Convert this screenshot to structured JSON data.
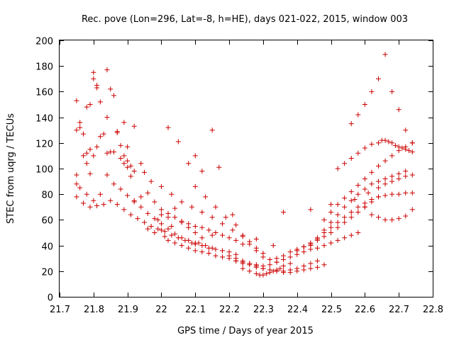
{
  "chart_data": {
    "type": "scatter",
    "title": "Rec. pove (Lon=296, Lat=-8, h=HE), days 021-022, 2015, window 003",
    "xlabel": "GPS time / Days of year 2015",
    "ylabel": "STEC from uqrg / TECUs",
    "xlim": [
      21.7,
      22.8
    ],
    "ylim": [
      0,
      200
    ],
    "xticks": [
      21.7,
      21.8,
      21.9,
      22.0,
      22.1,
      22.2,
      22.3,
      22.4,
      22.5,
      22.6,
      22.7,
      22.8
    ],
    "xtick_labels": [
      "21.7",
      "21.8",
      "21.9",
      "22",
      "22.1",
      "22.2",
      "22.3",
      "22.4",
      "22.5",
      "22.6",
      "22.7",
      "22.8"
    ],
    "yticks": [
      0,
      20,
      40,
      60,
      80,
      100,
      120,
      140,
      160,
      180,
      200
    ],
    "ytick_labels": [
      "0",
      "20",
      "40",
      "60",
      "80",
      "100",
      "120",
      "140",
      "160",
      "180",
      "200"
    ],
    "marker": "+",
    "color": "#cc0000",
    "series": [
      {
        "name": "STEC",
        "x": [
          21.75,
          21.76,
          21.77,
          21.78,
          21.79,
          21.8,
          21.81,
          21.82,
          21.84,
          21.85,
          21.86,
          21.87,
          21.88,
          21.89,
          21.9,
          21.91,
          21.75,
          21.76,
          21.78,
          21.79,
          21.8,
          21.81,
          21.83,
          21.84,
          21.86,
          21.88,
          21.89,
          21.9,
          21.91,
          21.92,
          21.75,
          21.77,
          21.78,
          21.79,
          21.8,
          21.81,
          21.82,
          21.84,
          21.85,
          21.87,
          21.89,
          21.9,
          21.92,
          21.94,
          21.95,
          21.97,
          21.75,
          21.76,
          21.78,
          21.8,
          21.82,
          21.84,
          21.86,
          21.88,
          21.9,
          21.92,
          21.94,
          21.96,
          21.98,
          22.0,
          22.02,
          22.04,
          22.06,
          22.08,
          22.1,
          22.12,
          21.75,
          21.77,
          21.79,
          21.81,
          21.83,
          21.85,
          21.87,
          21.89,
          21.91,
          21.93,
          21.95,
          21.97,
          21.99,
          22.01,
          22.03,
          22.05,
          22.07,
          22.09,
          22.11,
          22.13,
          22.15,
          21.92,
          21.94,
          21.96,
          21.98,
          22.0,
          22.02,
          22.04,
          22.06,
          22.08,
          22.1,
          22.12,
          22.14,
          22.16,
          22.18,
          22.2,
          22.22,
          22.0,
          22.02,
          22.04,
          22.06,
          22.08,
          22.1,
          22.12,
          22.14,
          22.16,
          22.18,
          22.2,
          22.22,
          22.24,
          22.02,
          22.05,
          22.08,
          22.1,
          22.12,
          22.15,
          22.17,
          21.96,
          21.98,
          22.0,
          22.01,
          22.02,
          22.04,
          22.06,
          22.08,
          22.1,
          22.12,
          22.14,
          22.16,
          22.18,
          22.2,
          22.22,
          22.24,
          22.26,
          22.28,
          22.0,
          22.03,
          22.06,
          22.09,
          22.12,
          22.15,
          22.18,
          22.21,
          22.24,
          22.26,
          22.28,
          22.3,
          22.1,
          22.13,
          22.16,
          22.19,
          22.22,
          22.24,
          22.26,
          22.28,
          22.3,
          22.32,
          22.34,
          22.2,
          22.22,
          22.24,
          22.26,
          22.28,
          22.3,
          22.32,
          22.34,
          22.36,
          22.38,
          22.4,
          22.42,
          22.44,
          22.46,
          22.48,
          22.22,
          22.24,
          22.26,
          22.28,
          22.3,
          22.32,
          22.34,
          22.36,
          22.38,
          22.4,
          22.42,
          22.44,
          22.46,
          22.24,
          22.26,
          22.28,
          22.29,
          22.3,
          22.31,
          22.32,
          22.33,
          22.34,
          22.35,
          22.36,
          22.38,
          22.3,
          22.32,
          22.34,
          22.36,
          22.38,
          22.4,
          22.42,
          22.44,
          22.46,
          22.48,
          22.5,
          22.52,
          22.54,
          22.56,
          22.58,
          22.34,
          22.36,
          22.38,
          22.4,
          22.42,
          22.44,
          22.46,
          22.48,
          22.5,
          22.52,
          22.54,
          22.56,
          22.58,
          22.6,
          22.62,
          22.64,
          22.4,
          22.42,
          22.44,
          22.46,
          22.48,
          22.5,
          22.52,
          22.54,
          22.56,
          22.58,
          22.6,
          22.62,
          22.64,
          22.66,
          22.68,
          22.7,
          22.72,
          22.74,
          22.44,
          22.46,
          22.48,
          22.5,
          22.52,
          22.54,
          22.56,
          22.58,
          22.6,
          22.62,
          22.64,
          22.66,
          22.68,
          22.7,
          22.72,
          22.48,
          22.5,
          22.52,
          22.54,
          22.56,
          22.58,
          22.6,
          22.62,
          22.64,
          22.66,
          22.68,
          22.7,
          22.72,
          22.74,
          22.52,
          22.54,
          22.56,
          22.58,
          22.6,
          22.62,
          22.64,
          22.65,
          22.66,
          22.67,
          22.68,
          22.69,
          22.7,
          22.71,
          22.72,
          22.73,
          22.74,
          22.56,
          22.58,
          22.6,
          22.62,
          22.64,
          22.66,
          22.68,
          22.7,
          22.72,
          22.74,
          22.6,
          22.62,
          22.64,
          22.66,
          22.68,
          22.7,
          22.72,
          22.74,
          22.64,
          22.66,
          22.68,
          22.7,
          22.72,
          22.74,
          22.28,
          22.33,
          22.1,
          22.15,
          22.03,
          21.99,
          22.21,
          22.36,
          22.44,
          22.5,
          22.57,
          22.61
        ],
        "y": [
          153,
          136,
          127,
          112,
          115,
          175,
          163,
          152,
          177,
          162,
          157,
          129,
          108,
          104,
          101,
          94,
          130,
          132,
          148,
          150,
          170,
          165,
          127,
          140,
          113,
          118,
          110,
          106,
          102,
          98,
          95,
          110,
          104,
          96,
          110,
          117,
          125,
          112,
          113,
          128,
          136,
          117,
          133,
          104,
          97,
          90,
          88,
          85,
          80,
          75,
          80,
          95,
          88,
          84,
          79,
          74,
          78,
          81,
          74,
          64,
          62,
          69,
          58,
          54,
          50,
          46,
          78,
          73,
          70,
          71,
          72,
          75,
          72,
          68,
          64,
          61,
          58,
          55,
          53,
          51,
          48,
          46,
          44,
          42,
          42,
          40,
          38,
          75,
          70,
          65,
          61,
          57,
          53,
          49,
          46,
          44,
          41,
          40,
          38,
          37,
          36,
          35,
          33,
          68,
          65,
          62,
          59,
          57,
          55,
          54,
          52,
          50,
          48,
          46,
          44,
          41,
          132,
          121,
          104,
          110,
          98,
          130,
          101,
          53,
          50,
          52,
          47,
          44,
          42,
          40,
          38,
          36,
          35,
          34,
          32,
          31,
          30,
          28,
          27,
          26,
          25,
          86,
          80,
          74,
          70,
          66,
          62,
          57,
          52,
          47,
          41,
          36,
          31,
          86,
          78,
          70,
          62,
          56,
          48,
          43,
          38,
          34,
          29,
          27,
          32,
          30,
          28,
          26,
          24,
          22,
          21,
          20,
          19,
          19,
          20,
          21,
          22,
          23,
          25,
          28,
          26,
          25,
          23,
          22,
          21,
          20,
          20,
          21,
          22,
          24,
          26,
          28,
          22,
          20,
          18,
          17,
          17,
          18,
          19,
          20,
          21,
          22,
          24,
          26,
          24,
          25,
          27,
          29,
          31,
          33,
          35,
          37,
          38,
          40,
          42,
          44,
          46,
          48,
          50,
          30,
          32,
          35,
          37,
          39,
          41,
          44,
          47,
          50,
          54,
          58,
          62,
          66,
          70,
          74,
          78,
          36,
          39,
          42,
          46,
          50,
          54,
          58,
          62,
          66,
          70,
          73,
          76,
          78,
          79,
          80,
          80,
          81,
          81,
          40,
          45,
          52,
          58,
          64,
          70,
          75,
          80,
          84,
          88,
          90,
          92,
          94,
          96,
          98,
          60,
          66,
          72,
          77,
          82,
          87,
          92,
          97,
          102,
          106,
          110,
          114,
          117,
          120,
          100,
          104,
          108,
          112,
          116,
          119,
          120,
          122,
          122,
          121,
          120,
          118,
          117,
          116,
          115,
          114,
          113,
          135,
          142,
          150,
          160,
          170,
          189,
          160,
          146,
          130,
          120,
          70,
          64,
          62,
          60,
          60,
          61,
          63,
          68,
          85,
          88,
          90,
          92,
          94,
          95,
          45,
          40,
          42,
          48,
          55,
          60,
          64,
          66,
          68,
          72,
          76,
          81
        ]
      }
    ]
  }
}
